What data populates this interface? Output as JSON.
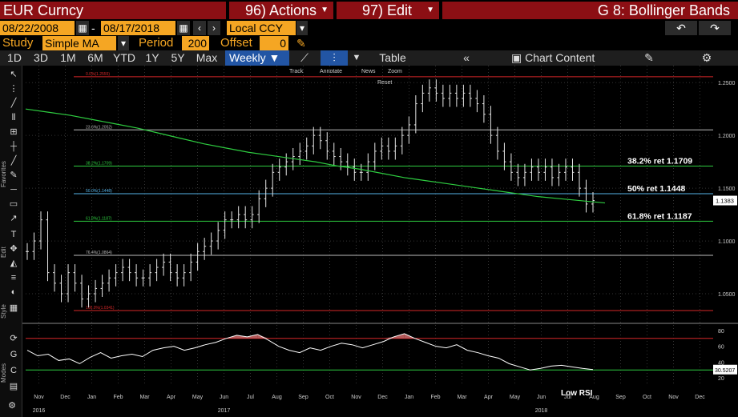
{
  "header": {
    "title": "EUR Curncy",
    "actions_label": "96) Actions",
    "edit_label": "97) Edit",
    "chart_name": "G 8: Bollinger Bands"
  },
  "params": {
    "start_date": "08/22/2008",
    "end_date": "08/17/2018",
    "currency": "Local CCY",
    "study_label": "Study",
    "study_value": "Simple MA",
    "period_label": "Period",
    "period_value": "200",
    "offset_label": "Offset",
    "offset_value": "0"
  },
  "toolbar": {
    "periods": [
      "1D",
      "3D",
      "1M",
      "6M",
      "YTD",
      "1Y",
      "5Y",
      "Max"
    ],
    "frequency": "Weekly",
    "table_label": "Table",
    "chart_content_label": "Chart Content"
  },
  "chart_tools": {
    "track": "Track",
    "annotate": "Annotate",
    "news": "News",
    "zoom": "Zoom",
    "reset": "Reset"
  },
  "sidebar": {
    "favorites_label": "Favorites",
    "edit_label": "Edit",
    "style_label": "Style",
    "modes_label": "Modes"
  },
  "chart_data": {
    "type": "line",
    "price_axis": {
      "ticks": [
        "1.2500",
        "1.2000",
        "1.1500",
        "1.1000",
        "1.0500"
      ],
      "ylim": [
        1.025,
        1.26
      ]
    },
    "rsi_axis": {
      "ticks": [
        "80",
        "60",
        "40",
        "20"
      ],
      "ylim": [
        10,
        85
      ]
    },
    "x_months": [
      "Nov",
      "Dec",
      "Jan",
      "Feb",
      "Mar",
      "Apr",
      "May",
      "Jun",
      "Jul",
      "Aug",
      "Sep",
      "Oct",
      "Nov",
      "Dec",
      "Jan",
      "Feb",
      "Mar",
      "Apr",
      "May",
      "Jun",
      "Jul",
      "Aug",
      "Sep",
      "Oct",
      "Nov",
      "Dec"
    ],
    "x_years": [
      "2016",
      "2017",
      "2018"
    ],
    "fib_levels": [
      {
        "label": "0.0%(1.2555)",
        "value": 1.2555,
        "color": "#d62728"
      },
      {
        "label": "23.6%(1.2052)",
        "value": 1.2052,
        "color": "#bbbbbb"
      },
      {
        "label": "38.2%(1.1709)",
        "value": 1.1709,
        "color": "#2ecc40"
      },
      {
        "label": "50.0%(1.1448)",
        "value": 1.1448,
        "color": "#56b4e9"
      },
      {
        "label": "61.8%(1.1187)",
        "value": 1.1187,
        "color": "#2ecc40"
      },
      {
        "label": "76.4%(1.0864)",
        "value": 1.0864,
        "color": "#bbbbbb"
      },
      {
        "label": "100.0%(1.0341)",
        "value": 1.0341,
        "color": "#d62728"
      }
    ],
    "annotations": [
      "38.2% ret 1.1709",
      "50% ret 1.1448",
      "61.8% ret 1.1187"
    ],
    "rsi_annotation": "Low RSI",
    "last_price": "1.1383",
    "last_rsi": "30.5207",
    "price_series": [
      1.09,
      1.1,
      1.12,
      1.07,
      1.06,
      1.05,
      1.07,
      1.06,
      1.045,
      1.05,
      1.055,
      1.06,
      1.065,
      1.07,
      1.075,
      1.07,
      1.065,
      1.065,
      1.07,
      1.075,
      1.08,
      1.07,
      1.065,
      1.07,
      1.08,
      1.09,
      1.095,
      1.1,
      1.11,
      1.12,
      1.12,
      1.125,
      1.12,
      1.125,
      1.14,
      1.15,
      1.165,
      1.17,
      1.175,
      1.18,
      1.185,
      1.19,
      1.2,
      1.195,
      1.185,
      1.18,
      1.175,
      1.17,
      1.165,
      1.165,
      1.175,
      1.185,
      1.19,
      1.185,
      1.19,
      1.2,
      1.21,
      1.23,
      1.24,
      1.245,
      1.24,
      1.235,
      1.24,
      1.235,
      1.24,
      1.235,
      1.23,
      1.22,
      1.2,
      1.185,
      1.175,
      1.165,
      1.16,
      1.165,
      1.17,
      1.165,
      1.17,
      1.16,
      1.165,
      1.17,
      1.165,
      1.15,
      1.135,
      1.1383
    ],
    "sma_series": [
      1.225,
      1.222,
      1.219,
      1.215,
      1.211,
      1.207,
      1.202,
      1.197,
      1.192,
      1.188,
      1.184,
      1.181,
      1.178,
      1.175,
      1.171,
      1.168,
      1.164,
      1.16,
      1.157,
      1.154,
      1.151,
      1.148,
      1.145,
      1.142,
      1.14,
      1.138,
      1.136
    ],
    "rsi_series": [
      55,
      48,
      50,
      42,
      44,
      38,
      46,
      52,
      45,
      48,
      50,
      47,
      55,
      58,
      60,
      55,
      58,
      62,
      65,
      70,
      74,
      72,
      75,
      68,
      60,
      55,
      52,
      58,
      55,
      60,
      64,
      62,
      58,
      62,
      66,
      72,
      76,
      70,
      65,
      60,
      58,
      62,
      55,
      52,
      48,
      45,
      38,
      34,
      30,
      32,
      35,
      36,
      34,
      32,
      30.5
    ],
    "rsi_bands": {
      "overbought": 70,
      "oversold": 30
    }
  }
}
